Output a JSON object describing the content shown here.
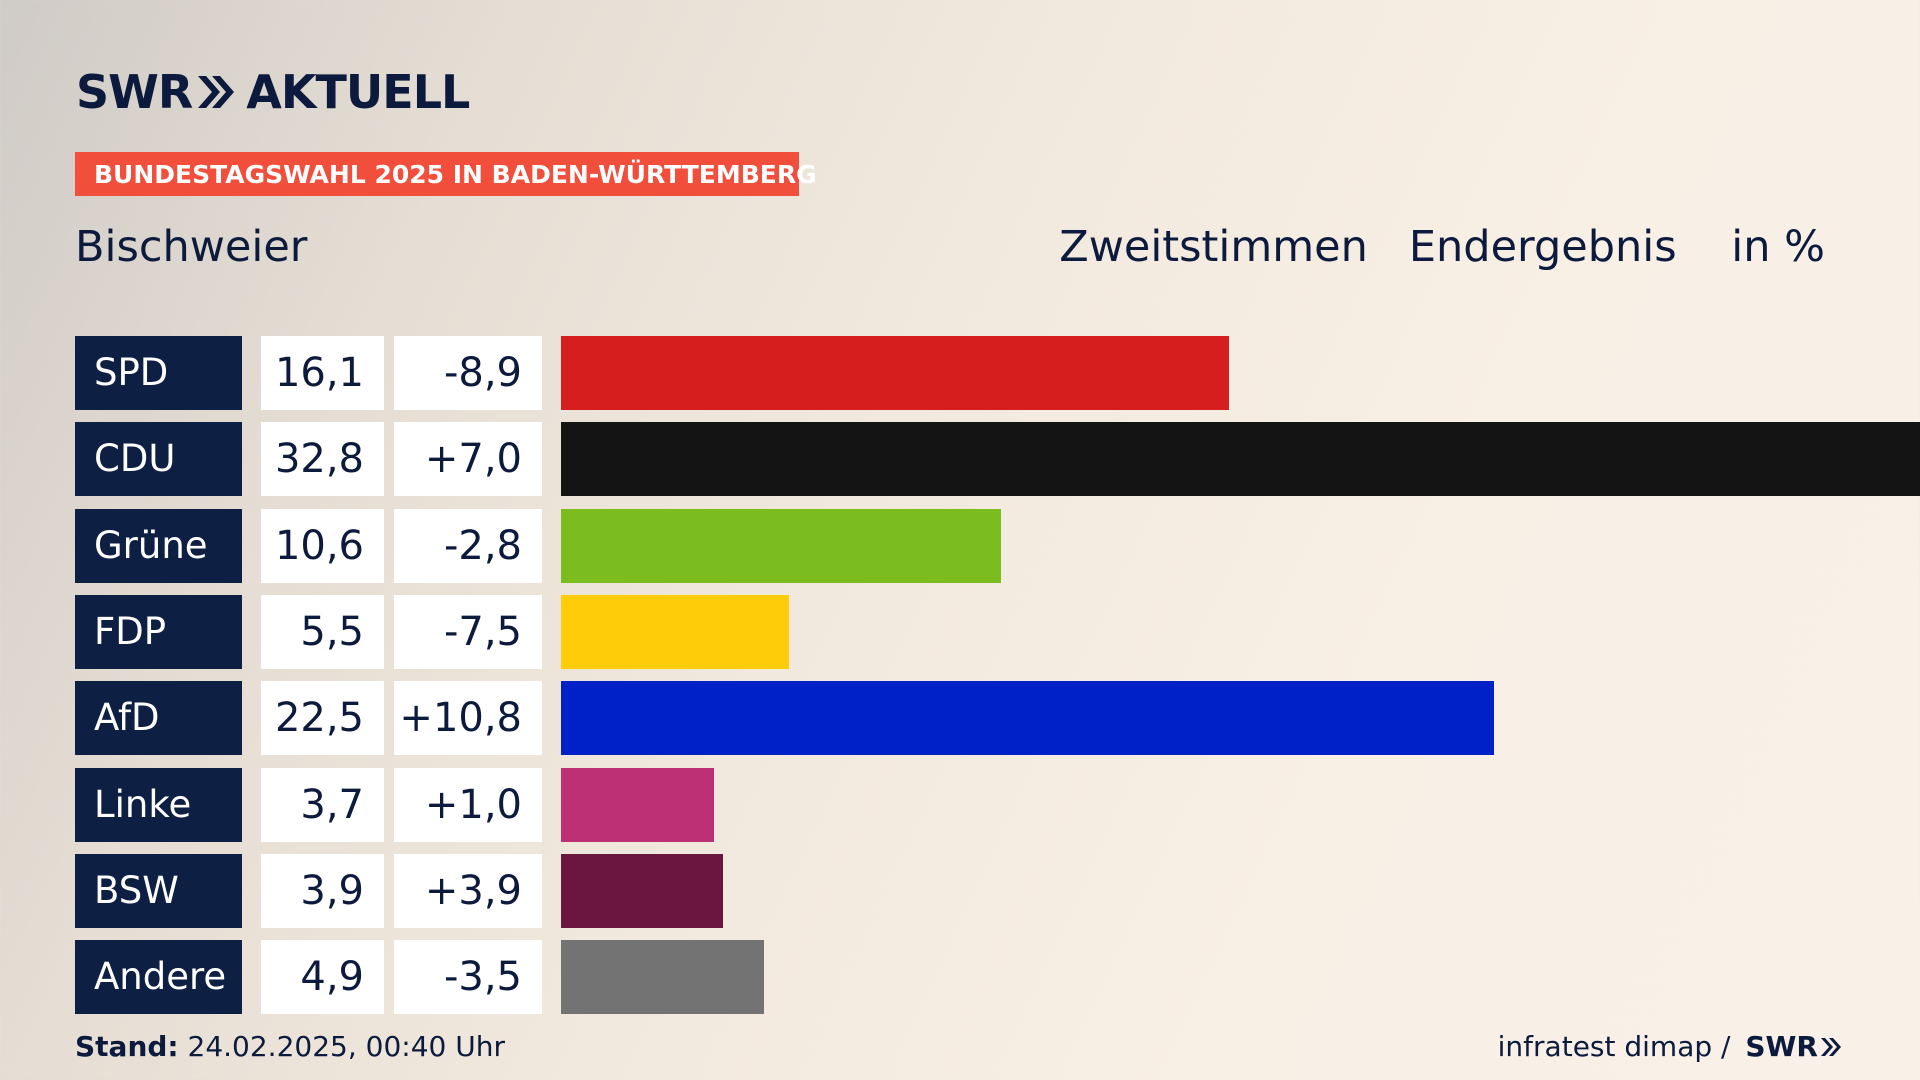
{
  "brand": {
    "logo_left": "SWR",
    "logo_right": "AKTUELL",
    "footer_brand": "SWR"
  },
  "banner": "BUNDESTAGSWAHL 2025 IN BADEN-WÜRTTEMBERG",
  "header": {
    "place": "Bischweier",
    "right": "Zweitstimmen   Endergebnis    in %"
  },
  "footer": {
    "stand_label": "Stand:",
    "stand_value": " 24.02.2025, 00:40 Uhr",
    "source": "infratest dimap / "
  },
  "colors": {
    "navy": "#0e1f44",
    "banner": "#f24e3c"
  },
  "chart_data": {
    "type": "bar",
    "orientation": "horizontal",
    "unit": "in %",
    "categories": [
      "SPD",
      "CDU",
      "Grüne",
      "FDP",
      "AfD",
      "Linke",
      "BSW",
      "Andere"
    ],
    "series": [
      {
        "values": [
          16.1,
          32.8,
          10.6,
          5.5,
          22.5,
          3.7,
          3.9,
          4.9
        ]
      }
    ],
    "value_labels": [
      "16,1",
      "32,8",
      "10,6",
      "5,5",
      "22,5",
      "3,7",
      "3,9",
      "4,9"
    ],
    "change_labels": [
      "-8,9",
      "+7,0",
      "-2,8",
      "-7,5",
      "+10,8",
      "+1,0",
      "+3,9",
      "-3,5"
    ],
    "changes": [
      -8.9,
      7.0,
      -2.8,
      -7.5,
      10.8,
      1.0,
      3.9,
      -3.5
    ],
    "bar_colors": [
      "#d71e1e",
      "#141414",
      "#7bbd1e",
      "#ffcc09",
      "#0021c8",
      "#bd3075",
      "#6b1640",
      "#737373"
    ],
    "xlim": [
      0,
      32.8
    ]
  }
}
